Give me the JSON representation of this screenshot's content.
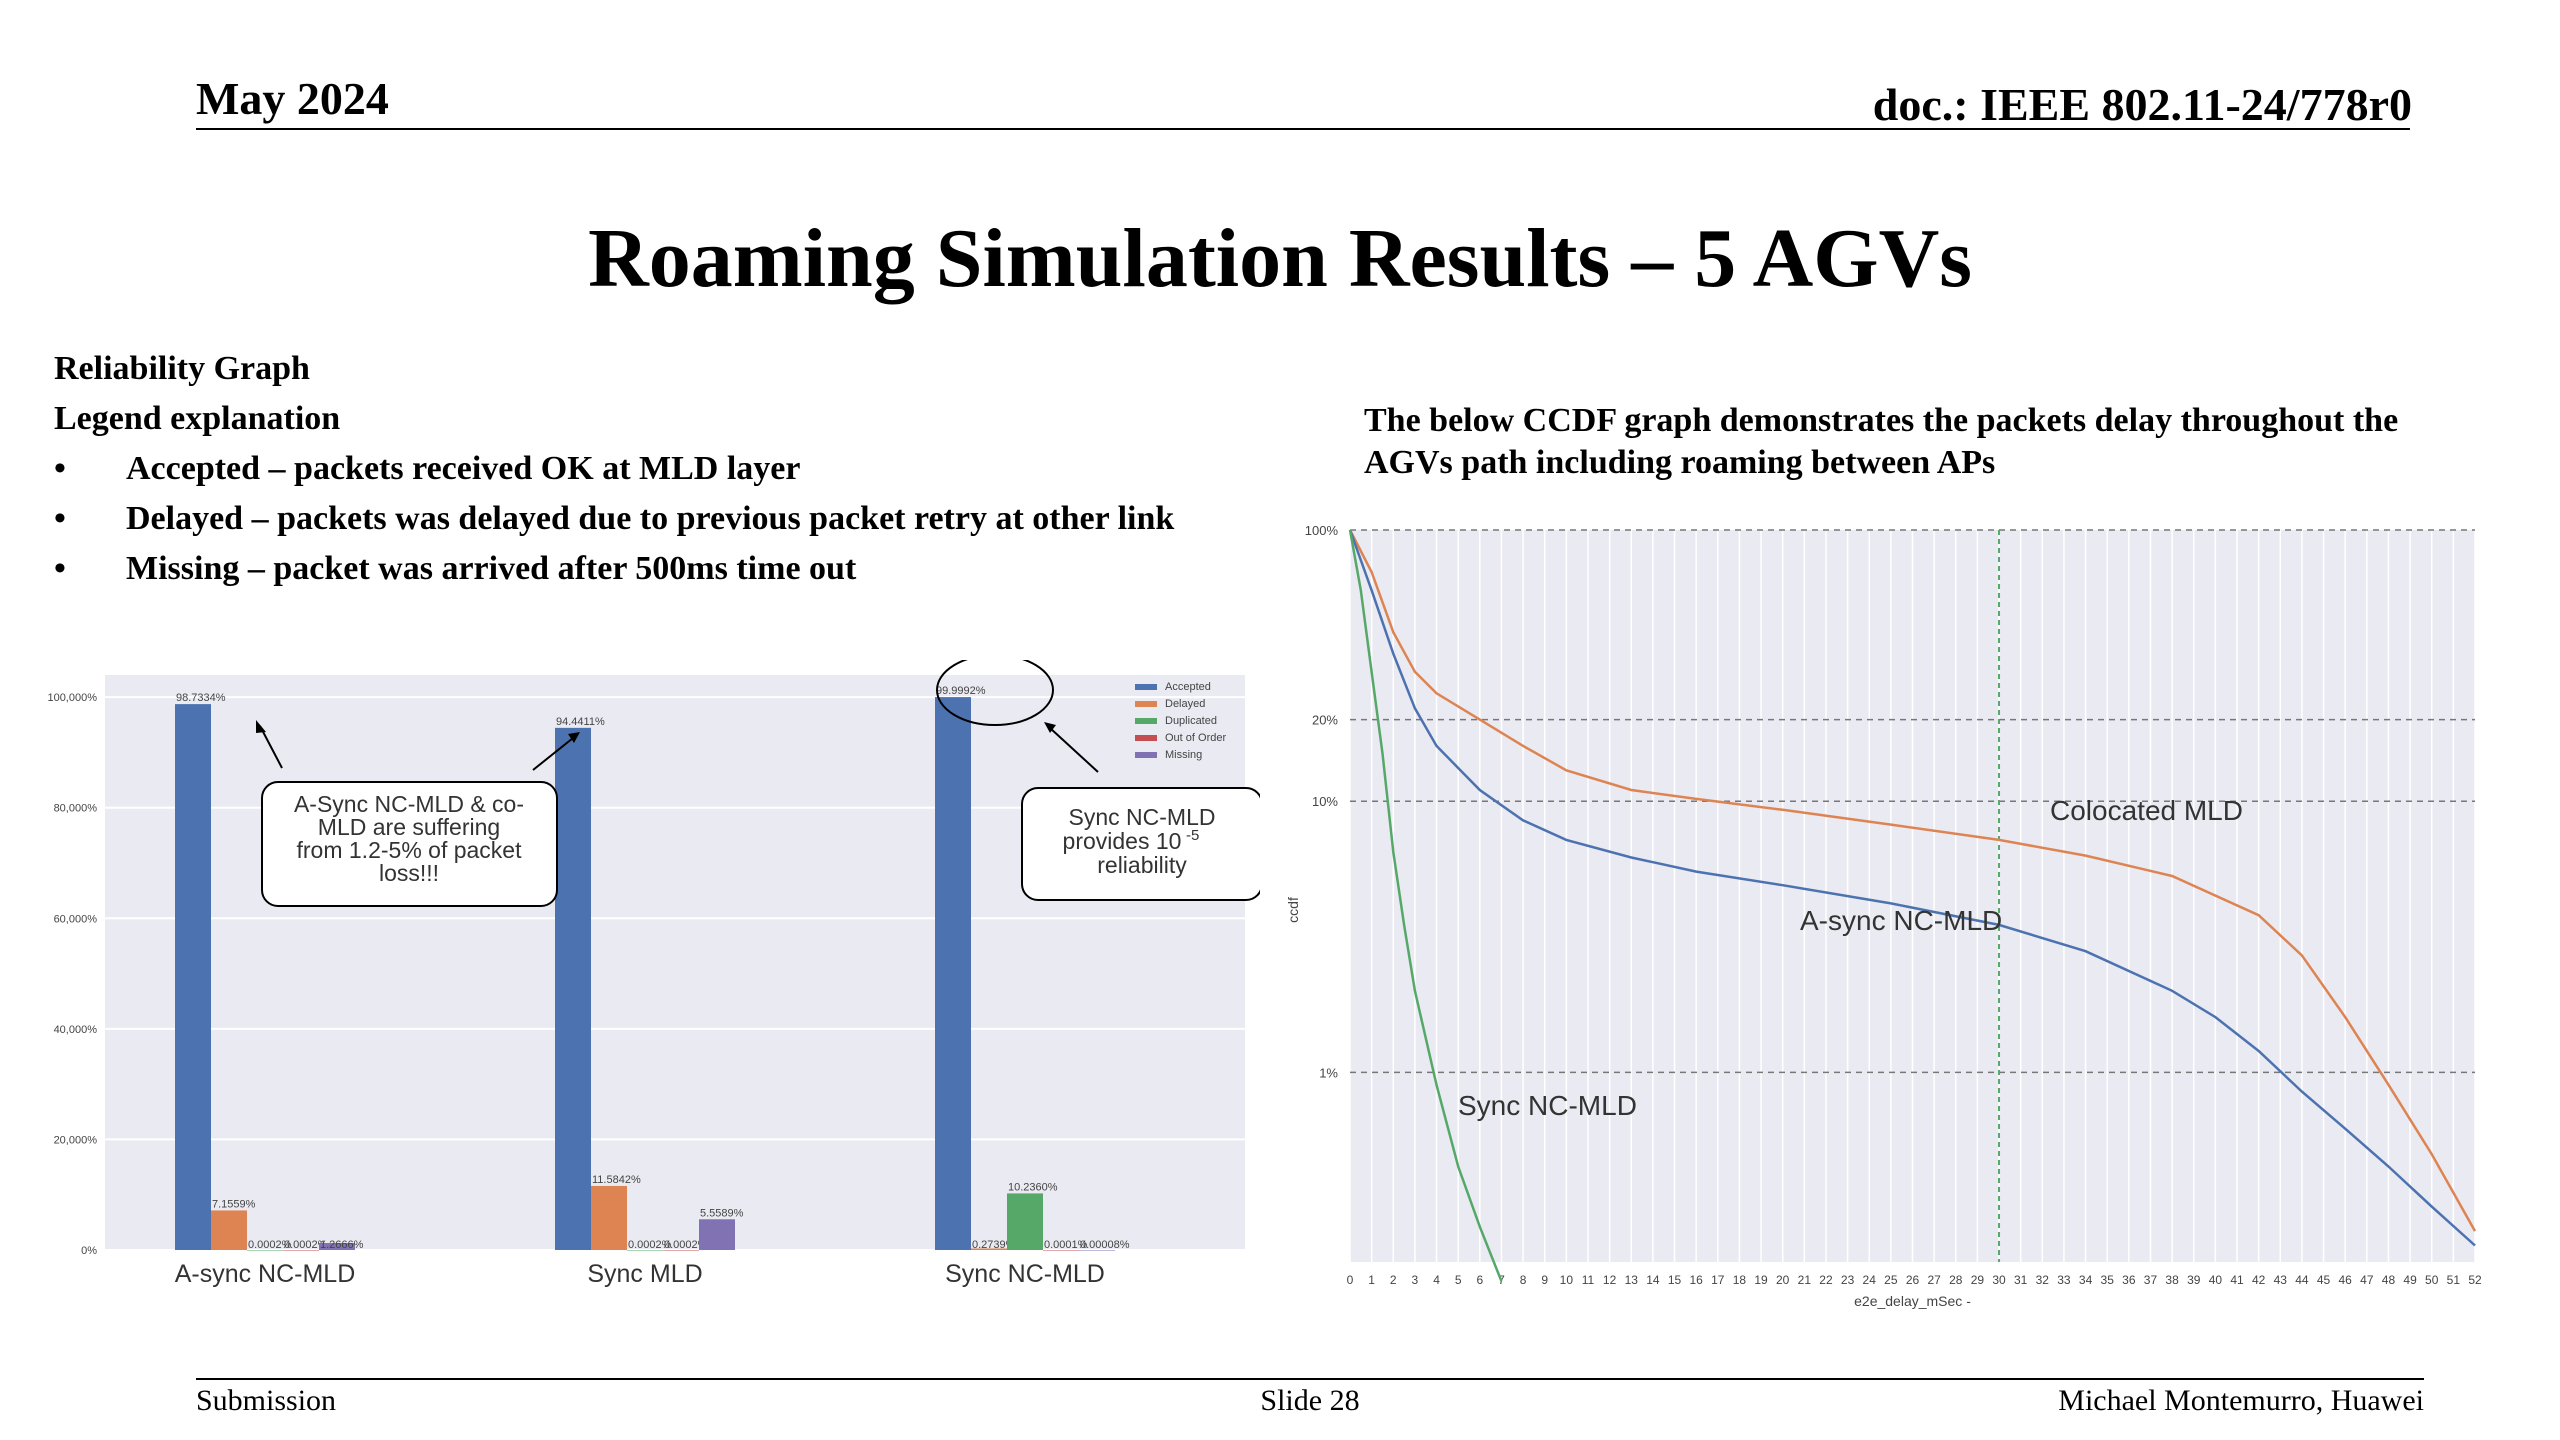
{
  "header": {
    "date": "May 2024",
    "doc": "doc.: IEEE 802.11-24/778r0"
  },
  "title": "Roaming Simulation Results – 5 AGVs",
  "left_text": {
    "heading": "Reliability Graph",
    "subheading": "Legend explanation",
    "bullets": [
      "Accepted – packets received OK at MLD layer",
      "Delayed – packets was delayed due to previous packet retry at other link",
      "Missing – packet was arrived after 500ms time out"
    ]
  },
  "right_text": {
    "line1": "The below CCDF graph demonstrates the packets delay throughout the",
    "line2": "AGVs path including roaming between APs"
  },
  "footer": {
    "left": "Submission",
    "center": "Slide 28",
    "right": "Michael Montemurro, Huawei"
  },
  "colors": {
    "blue": "#4c72b0",
    "orange": "#dd8452",
    "green": "#55a868",
    "red": "#c44e52",
    "purple": "#8172b3",
    "plot_bg": "#eaeaf2"
  },
  "chart_data": [
    {
      "type": "bar",
      "categories": [
        "A-sync NC-MLD",
        "Sync MLD",
        "Sync NC-MLD"
      ],
      "series": [
        {
          "name": "Accepted",
          "values": [
            98.7334,
            94.4411,
            99.9992
          ]
        },
        {
          "name": "Delayed",
          "values": [
            7.1559,
            11.5842,
            0.2739
          ]
        },
        {
          "name": "Duplicated",
          "values": [
            0.0002,
            0.0002,
            10.236
          ]
        },
        {
          "name": "Out of Order",
          "values": [
            0.0002,
            0.0002,
            0.0001
          ]
        },
        {
          "name": "Missing",
          "values": [
            1.2666,
            5.5589,
            8e-05
          ]
        }
      ],
      "data_labels": [
        [
          "98.7334%",
          "7.1559%",
          "0.0002%",
          "0.0002%",
          "1.2666%"
        ],
        [
          "94.4411%",
          "11.5842%",
          "0.0002%",
          "0.0002%",
          "5.5589%"
        ],
        [
          "99.9992%",
          "0.2739%",
          "10.2360%",
          "0.0001%",
          "0.00008%"
        ]
      ],
      "yticks": [
        "0%",
        "20,000%",
        "40,000%",
        "60,000%",
        "80,000%",
        "100,000%"
      ],
      "ylim": [
        0,
        104
      ],
      "legend_position": "top-right",
      "annotations": [
        {
          "lines": [
            "A-Sync NC-MLD & co-",
            "MLD are suffering",
            "from 1.2-5% of packet",
            "loss!!!"
          ]
        },
        {
          "lines": [
            "Sync NC-MLD",
            "provides 10",
            "-5",
            "reliability"
          ]
        }
      ]
    },
    {
      "type": "line",
      "xlabel": "e2e_delay_mSec -",
      "ylabel": "ccdf",
      "xlim": [
        0,
        52
      ],
      "y_scale": "log",
      "ylim": [
        0.002,
        1.0
      ],
      "yticks": [
        {
          "value": 1.0,
          "label": "100%"
        },
        {
          "value": 0.2,
          "label": "20%"
        },
        {
          "value": 0.1,
          "label": "10%"
        },
        {
          "value": 0.01,
          "label": "1%"
        }
      ],
      "vertical_marker_x": 30,
      "series": [
        {
          "name": "Colocated MLD",
          "x": [
            0,
            1,
            2,
            3,
            4,
            6,
            8,
            10,
            13,
            16,
            20,
            25,
            30,
            34,
            38,
            42,
            44,
            46,
            48,
            50,
            52
          ],
          "y": [
            1.0,
            0.7,
            0.42,
            0.3,
            0.25,
            0.2,
            0.16,
            0.13,
            0.11,
            0.102,
            0.093,
            0.082,
            0.072,
            0.063,
            0.053,
            0.038,
            0.027,
            0.016,
            0.009,
            0.005,
            0.0026
          ]
        },
        {
          "name": "A-sync NC-MLD",
          "x": [
            0,
            1,
            2,
            3,
            4,
            6,
            8,
            10,
            13,
            16,
            20,
            25,
            30,
            34,
            38,
            40,
            42,
            44,
            46,
            48,
            50,
            52
          ],
          "y": [
            1.0,
            0.6,
            0.35,
            0.22,
            0.16,
            0.11,
            0.085,
            0.072,
            0.062,
            0.055,
            0.049,
            0.042,
            0.035,
            0.028,
            0.02,
            0.016,
            0.012,
            0.0085,
            0.0062,
            0.0045,
            0.0032,
            0.0023
          ]
        },
        {
          "name": "Sync NC-MLD",
          "x": [
            0,
            0.5,
            1,
            1.5,
            2,
            2.5,
            3,
            4,
            5,
            6,
            7
          ],
          "y": [
            1.0,
            0.6,
            0.3,
            0.15,
            0.065,
            0.035,
            0.02,
            0.009,
            0.0045,
            0.0027,
            0.0017
          ]
        }
      ]
    }
  ]
}
